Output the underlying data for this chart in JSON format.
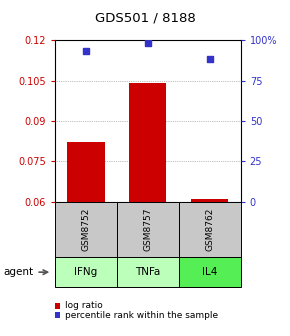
{
  "title": "GDS501 / 8188",
  "samples": [
    "GSM8752",
    "GSM8757",
    "GSM8762"
  ],
  "agents": [
    "IFNg",
    "TNFa",
    "IL4"
  ],
  "bar_values": [
    0.082,
    0.104,
    0.061
  ],
  "bar_baseline": 0.06,
  "scatter_y": [
    0.116,
    0.119,
    0.113
  ],
  "ylim": [
    0.06,
    0.12
  ],
  "yticks_left": [
    0.06,
    0.075,
    0.09,
    0.105,
    0.12
  ],
  "yticks_right": [
    0,
    25,
    50,
    75,
    100
  ],
  "bar_color": "#cc0000",
  "scatter_color": "#3333cc",
  "sample_bg_color": "#c8c8c8",
  "agent_colors": [
    "#bbffbb",
    "#bbffbb",
    "#55ee55"
  ],
  "left_tick_color": "#cc0000",
  "right_tick_color": "#3333cc",
  "legend_bar_label": "log ratio",
  "legend_scatter_label": "percentile rank within the sample",
  "agent_label": "agent",
  "bar_width": 0.6,
  "figw": 2.9,
  "figh": 3.36,
  "dpi": 100
}
